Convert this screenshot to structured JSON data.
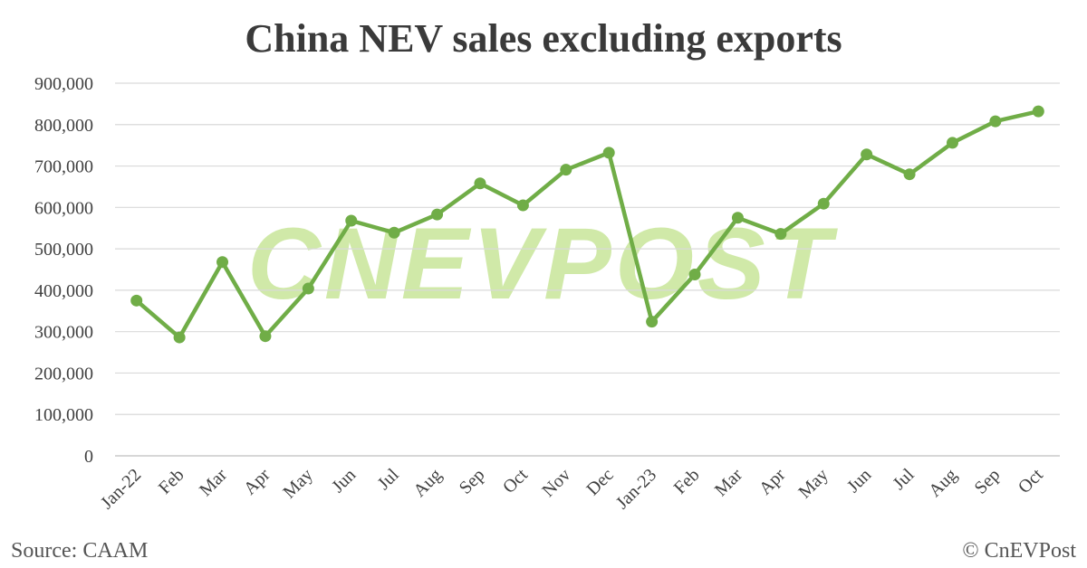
{
  "chart_data": {
    "type": "line",
    "title": "China NEV sales excluding exports",
    "xlabel": "",
    "ylabel": "",
    "categories": [
      "Jan-22",
      "Feb",
      "Mar",
      "Apr",
      "May",
      "Jun",
      "Jul",
      "Aug",
      "Sep",
      "Oct",
      "Nov",
      "Dec",
      "Jan-23",
      "Feb",
      "Mar",
      "Apr",
      "May",
      "Jun",
      "Jul",
      "Aug",
      "Sep",
      "Oct"
    ],
    "series": [
      {
        "values": [
          375000,
          286000,
          468000,
          289000,
          404000,
          568000,
          539000,
          583000,
          658000,
          605000,
          691000,
          732000,
          324000,
          438000,
          575000,
          536000,
          609000,
          728000,
          680000,
          756000,
          808000,
          832000
        ],
        "color": "#70ad47"
      }
    ],
    "ylim": [
      0,
      900000
    ],
    "yticks": [
      "0",
      "100,000",
      "200,000",
      "300,000",
      "400,000",
      "500,000",
      "600,000",
      "700,000",
      "800,000",
      "900,000"
    ],
    "grid": true,
    "legend": "none"
  },
  "footer": {
    "source": "Source: CAAM",
    "copyright": "© CnEVPost"
  },
  "watermark": {
    "text": "CNEVPOST",
    "color": "#c8e69a"
  }
}
